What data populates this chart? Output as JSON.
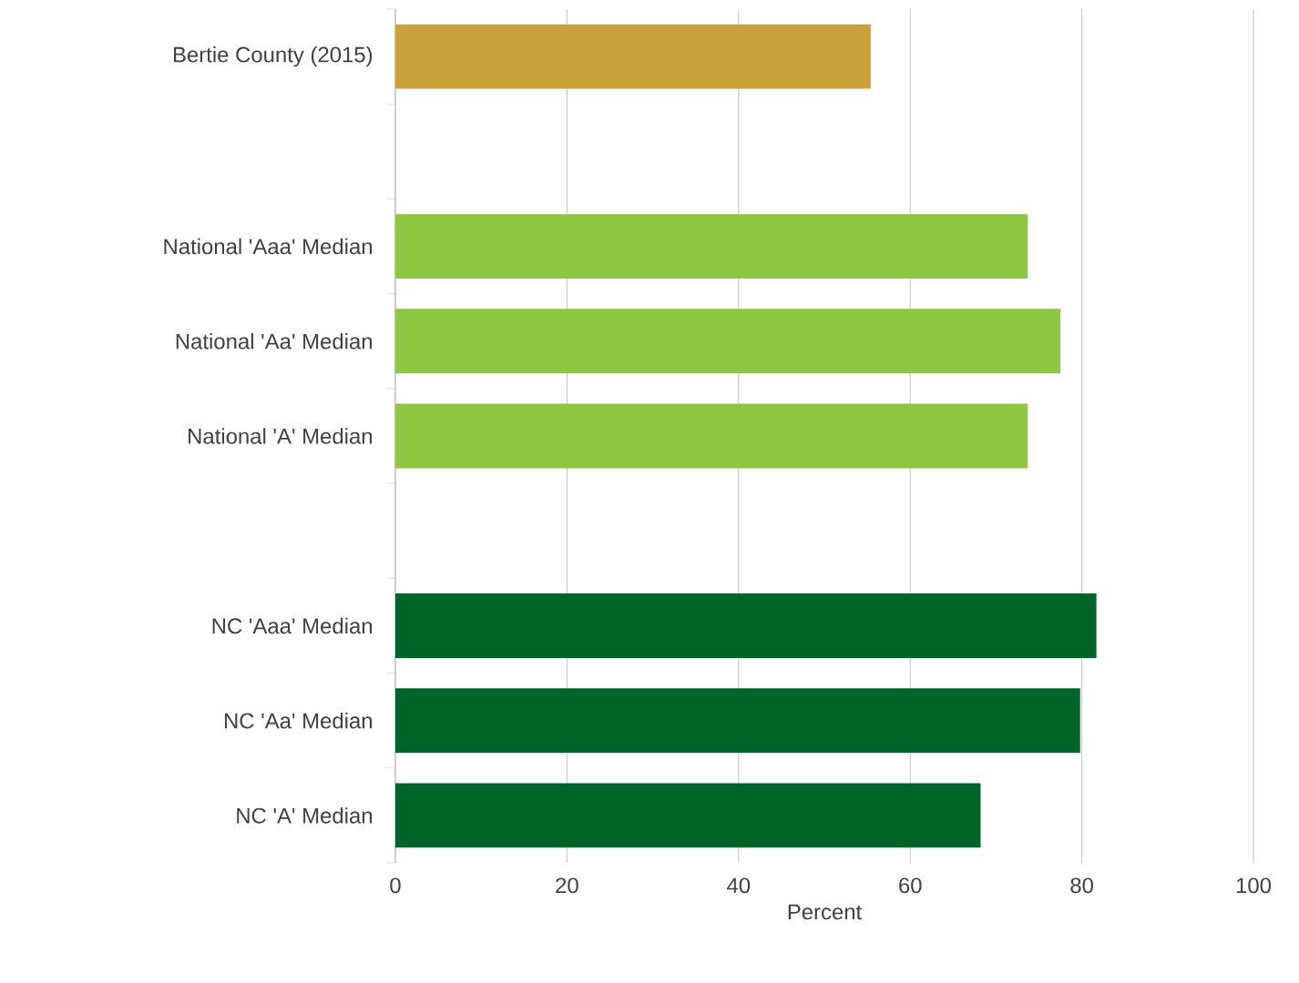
{
  "chart_data": {
    "type": "bar",
    "orientation": "horizontal",
    "categories": [
      "Bertie County (2015)",
      null,
      "National 'Aaa' Median",
      "National 'Aa' Median",
      "National 'A' Median",
      null,
      "NC 'Aaa' Median",
      "NC 'Aa' Median",
      "NC 'A' Median"
    ],
    "values": [
      55.4,
      null,
      73.7,
      77.5,
      73.7,
      null,
      81.7,
      79.8,
      68.2
    ],
    "colors": [
      "#c9a23a",
      null,
      "#8dc63f",
      "#8dc63f",
      "#8dc63f",
      null,
      "#006428",
      "#006428",
      "#006428"
    ],
    "xlim": [
      0,
      100
    ],
    "xticks": [
      0,
      20,
      40,
      60,
      80,
      100
    ],
    "xlabel": "Percent",
    "grid": "x"
  }
}
